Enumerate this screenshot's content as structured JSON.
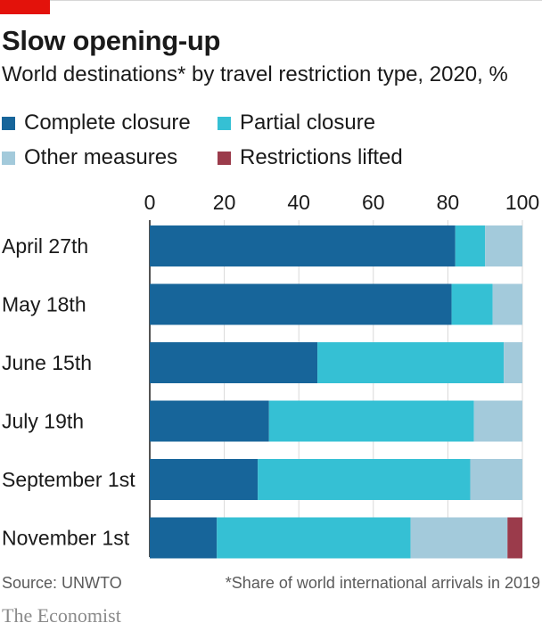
{
  "brand": {
    "accent": "#e3120b",
    "name": "The Economist"
  },
  "header": {
    "title": "Slow opening-up",
    "subtitle": "World destinations* by travel restriction type, 2020, %"
  },
  "footer": {
    "source": "Source: UNWTO",
    "note": "*Share of world international arrivals in 2019"
  },
  "chart_data": {
    "type": "bar",
    "orientation": "horizontal",
    "stacked": true,
    "title": "Slow opening-up",
    "subtitle": "World destinations* by travel restriction type, 2020, %",
    "categories": [
      "April 27th",
      "May 18th",
      "June 15th",
      "July 19th",
      "September 1st",
      "November 1st"
    ],
    "series": [
      {
        "name": "Complete closure",
        "color": "#17659a",
        "values": [
          82,
          81,
          45,
          32,
          29,
          18
        ]
      },
      {
        "name": "Partial closure",
        "color": "#35c0d4",
        "values": [
          8,
          11,
          50,
          55,
          57,
          52
        ]
      },
      {
        "name": "Other measures",
        "color": "#a3cadb",
        "values": [
          10,
          8,
          5,
          13,
          14,
          26
        ]
      },
      {
        "name": "Restrictions lifted",
        "color": "#9b3b4b",
        "values": [
          0,
          0,
          0,
          0,
          0,
          4
        ]
      }
    ],
    "xlim": [
      0,
      100
    ],
    "xticks": [
      0,
      20,
      40,
      60,
      80,
      100
    ],
    "xtick_labels": [
      "0",
      "20",
      "40",
      "60",
      "80",
      "100"
    ],
    "grid": true,
    "legend_position": "top"
  }
}
